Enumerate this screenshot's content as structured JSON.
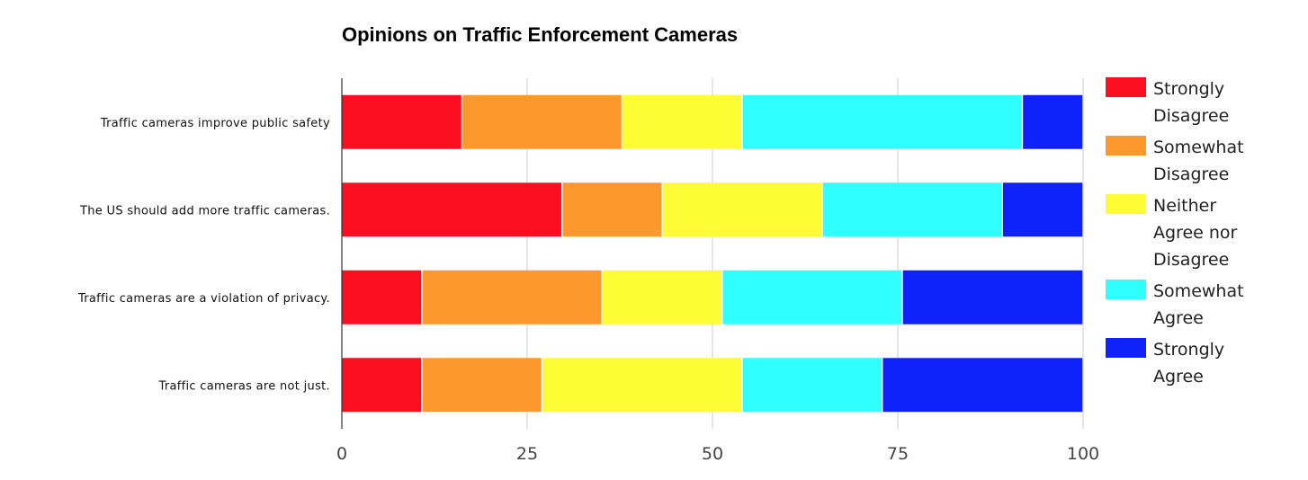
{
  "chart_data": {
    "type": "bar",
    "orientation": "horizontal",
    "stacked": true,
    "title": "Opinions on Traffic Enforcement Cameras",
    "xlabel": "",
    "ylabel": "",
    "xlim": [
      0,
      100
    ],
    "xticks": [
      0,
      25,
      50,
      75,
      100
    ],
    "grid": true,
    "legend_position": "right",
    "categories": [
      "Traffic cameras improve public safety",
      "The US should add more traffic cameras.",
      "Traffic cameras are a violation of privacy.",
      "Traffic cameras are not just."
    ],
    "series": [
      {
        "name": "Strongly Disagree",
        "legend_lines": [
          "Strongly",
          "Disagree"
        ],
        "color": "#fb0e1f",
        "values": [
          16.2,
          29.7,
          10.8,
          10.8
        ]
      },
      {
        "name": "Somewhat Disagree",
        "legend_lines": [
          "Somewhat",
          "Disagree"
        ],
        "color": "#fd992c",
        "values": [
          21.6,
          13.5,
          24.3,
          16.2
        ]
      },
      {
        "name": "Neither Agree nor Disagree",
        "legend_lines": [
          "Neither",
          "Agree nor",
          "Disagree"
        ],
        "color": "#fdfc35",
        "values": [
          16.2,
          21.6,
          16.2,
          27.0
        ]
      },
      {
        "name": "Somewhat Agree",
        "legend_lines": [
          "Somewhat",
          "Agree"
        ],
        "color": "#2ffffe",
        "values": [
          37.8,
          24.3,
          24.3,
          18.9
        ]
      },
      {
        "name": "Strongly Agree",
        "legend_lines": [
          "Strongly",
          "Agree"
        ],
        "color": "#0f22f9",
        "values": [
          8.1,
          10.8,
          24.3,
          27.0
        ]
      }
    ]
  }
}
